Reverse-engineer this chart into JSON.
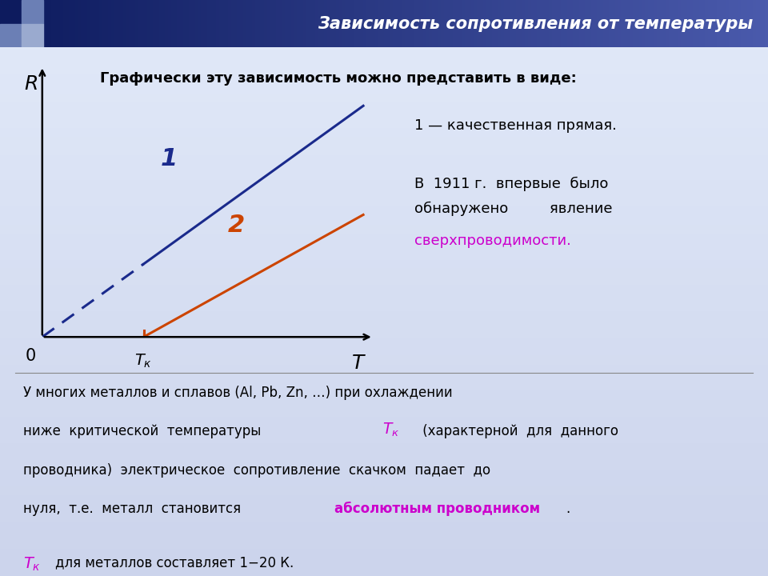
{
  "title": "Зависимость сопротивления от температуры",
  "title_bg_left": "#1a2a6c",
  "title_bg_right": "#4a5aac",
  "title_text_color": "#ffffff",
  "bg_color_top": "#dce6f1",
  "bg_color_bottom": "#e8ecf8",
  "header_square1": "#1a1a6c",
  "header_square2": "#6b7fb5",
  "subtitle": "Графически эту зависимость можно представить в виде:",
  "line1_color": "#1a2a8c",
  "line2_color": "#cc4400",
  "annotation1": "1 — качественная прямая.",
  "annotation2_color": "#cc00cc",
  "axis_color": "#000000",
  "separator_color": "#888888",
  "font_size_title": 15,
  "font_size_main": 13,
  "font_size_small": 12
}
